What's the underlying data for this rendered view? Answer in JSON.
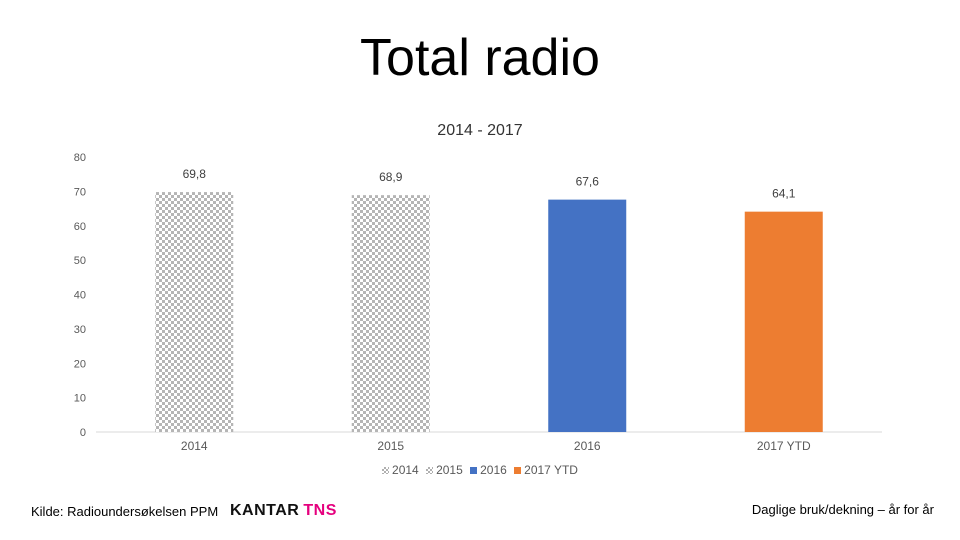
{
  "title": "Total radio",
  "subtitle": "2014 - 2017",
  "footer": {
    "source": "Kilde: Radioundersøkelsen PPM",
    "logo_part1": "KANTAR",
    "logo_part2": "TNS",
    "right_text": "Daglige bruk/dekning – år for år"
  },
  "chart_data": {
    "type": "bar",
    "categories": [
      "2014",
      "2015",
      "2016",
      "2017 YTD"
    ],
    "values": [
      69.8,
      68.9,
      67.6,
      64.1
    ],
    "value_labels": [
      "69,8",
      "68,9",
      "67,6",
      "64,1"
    ],
    "colors": [
      "pattern",
      "pattern",
      "#4472C4",
      "#ED7D31"
    ],
    "ylim": [
      0,
      80
    ],
    "yticks": [
      "0",
      "10",
      "20",
      "30",
      "40",
      "50",
      "60",
      "70",
      "80"
    ],
    "grid": false,
    "legend": {
      "position": "bottom",
      "entries": [
        "2014",
        "2015",
        "2016",
        "2017 YTD"
      ]
    }
  }
}
